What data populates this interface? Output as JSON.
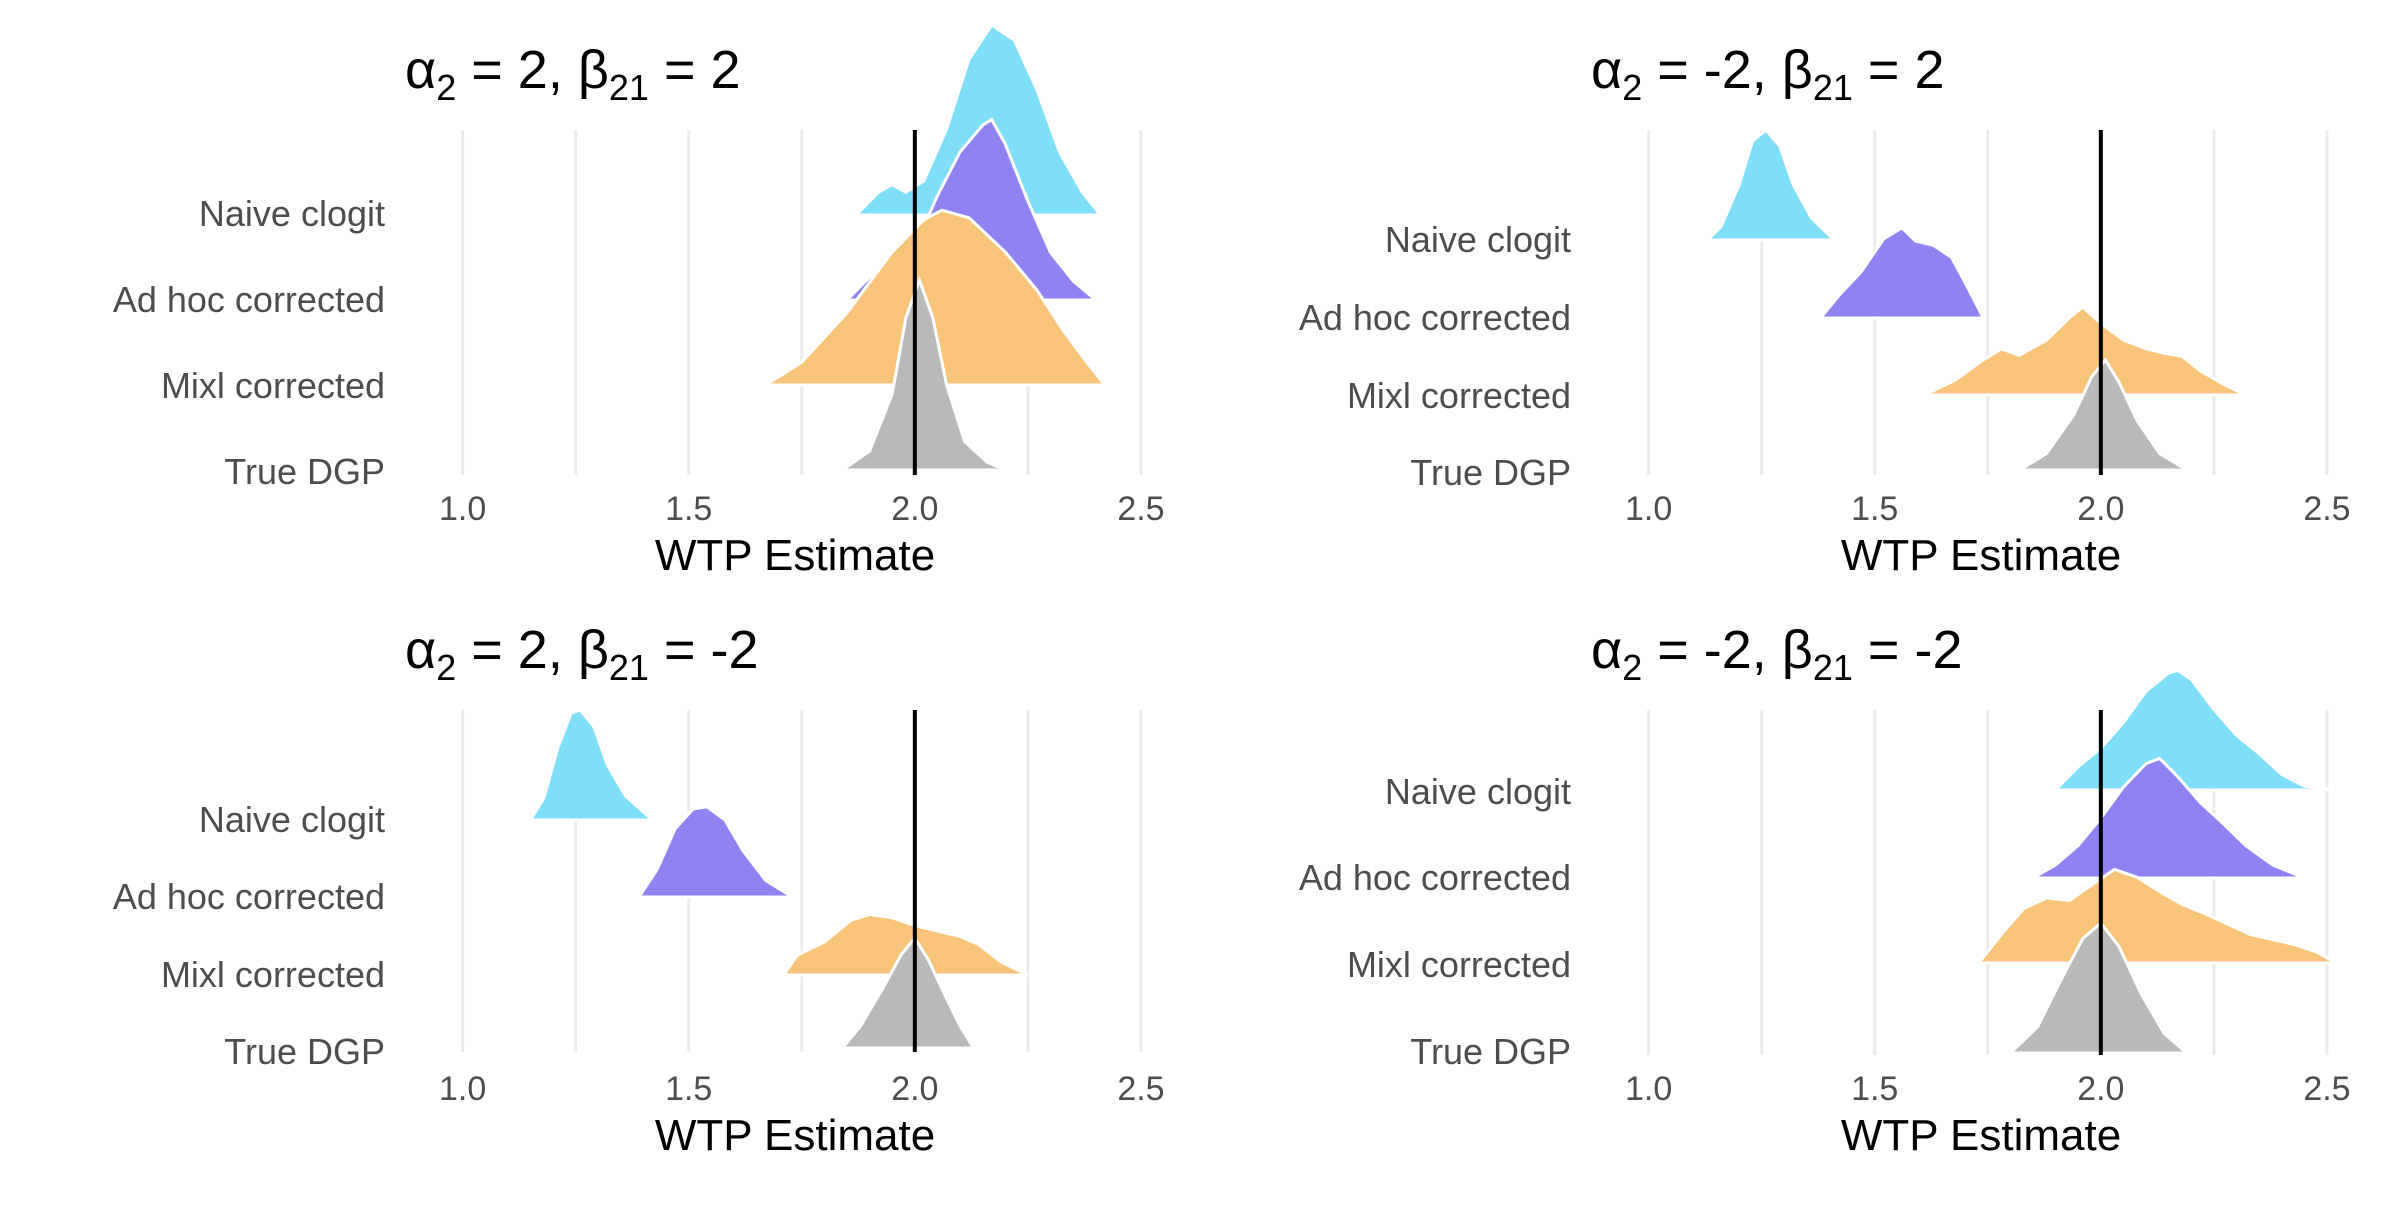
{
  "chart_data": [
    {
      "type": "area",
      "subtype": "ridgeline-density",
      "title": {
        "alpha_value": "2",
        "beta_value": "2"
      },
      "xlabel": "WTP Estimate",
      "xlim": [
        0.95,
        2.52
      ],
      "xticks": [
        "1.0",
        "1.5",
        "2.0",
        "2.5"
      ],
      "xtick_values": [
        1.0,
        1.5,
        2.0,
        2.5
      ],
      "reference_line": 2.0,
      "grid": "vertical",
      "categories": [
        "Naive clogit",
        "Ad hoc corrected",
        "Mixl corrected",
        "True DGP"
      ],
      "series": [
        {
          "label": "Naive clogit",
          "color": "#7fdef8",
          "range": [
            1.87,
            2.41
          ],
          "density": [
            [
              1.87,
              0
            ],
            [
              1.92,
              0.12
            ],
            [
              1.95,
              0.16
            ],
            [
              1.98,
              0.12
            ],
            [
              2.02,
              0.18
            ],
            [
              2.07,
              0.45
            ],
            [
              2.12,
              0.82
            ],
            [
              2.17,
              1.0
            ],
            [
              2.22,
              0.92
            ],
            [
              2.27,
              0.66
            ],
            [
              2.32,
              0.33
            ],
            [
              2.37,
              0.12
            ],
            [
              2.41,
              0
            ]
          ]
        },
        {
          "label": "Ad hoc corrected",
          "color": "#8f83f4",
          "range": [
            1.85,
            2.4
          ],
          "density": [
            [
              1.85,
              0
            ],
            [
              1.9,
              0.12
            ],
            [
              1.95,
              0.16
            ],
            [
              2.0,
              0.28
            ],
            [
              2.05,
              0.55
            ],
            [
              2.1,
              0.78
            ],
            [
              2.15,
              0.92
            ],
            [
              2.17,
              0.95
            ],
            [
              2.2,
              0.82
            ],
            [
              2.25,
              0.52
            ],
            [
              2.3,
              0.25
            ],
            [
              2.35,
              0.1
            ],
            [
              2.4,
              0
            ]
          ]
        },
        {
          "label": "Mixl corrected",
          "color": "#f7c47a",
          "range": [
            1.67,
            2.42
          ],
          "density": [
            [
              1.67,
              0
            ],
            [
              1.75,
              0.12
            ],
            [
              1.85,
              0.38
            ],
            [
              1.95,
              0.7
            ],
            [
              2.02,
              0.87
            ],
            [
              2.06,
              0.92
            ],
            [
              2.12,
              0.88
            ],
            [
              2.2,
              0.7
            ],
            [
              2.27,
              0.5
            ],
            [
              2.33,
              0.28
            ],
            [
              2.38,
              0.12
            ],
            [
              2.42,
              0
            ]
          ]
        },
        {
          "label": "True DGP",
          "color": "#b9b9b9",
          "range": [
            1.84,
            2.2
          ],
          "density": [
            [
              1.84,
              0
            ],
            [
              1.9,
              0.1
            ],
            [
              1.95,
              0.4
            ],
            [
              1.98,
              0.8
            ],
            [
              2.01,
              1.0
            ],
            [
              2.04,
              0.8
            ],
            [
              2.07,
              0.45
            ],
            [
              2.11,
              0.15
            ],
            [
              2.16,
              0.04
            ],
            [
              2.2,
              0
            ]
          ]
        }
      ]
    },
    {
      "type": "area",
      "subtype": "ridgeline-density",
      "title": {
        "alpha_value": "-2",
        "beta_value": "2"
      },
      "xlabel": "WTP Estimate",
      "xlim": [
        0.95,
        2.52
      ],
      "xticks": [
        "1.0",
        "1.5",
        "2.0",
        "2.5"
      ],
      "xtick_values": [
        1.0,
        1.5,
        2.0,
        2.5
      ],
      "reference_line": 2.0,
      "grid": "vertical",
      "categories": [
        "Naive clogit",
        "Ad hoc corrected",
        "Mixl corrected",
        "True DGP"
      ],
      "series": [
        {
          "label": "Naive clogit",
          "color": "#7fdef8",
          "range": [
            1.13,
            1.41
          ],
          "density": [
            [
              1.13,
              0
            ],
            [
              1.16,
              0.12
            ],
            [
              1.2,
              0.5
            ],
            [
              1.23,
              0.9
            ],
            [
              1.26,
              1.0
            ],
            [
              1.29,
              0.85
            ],
            [
              1.32,
              0.5
            ],
            [
              1.36,
              0.2
            ],
            [
              1.41,
              0
            ]
          ]
        },
        {
          "label": "Ad hoc corrected",
          "color": "#8f83f4",
          "range": [
            1.38,
            1.74
          ],
          "density": [
            [
              1.38,
              0
            ],
            [
              1.42,
              0.2
            ],
            [
              1.47,
              0.42
            ],
            [
              1.52,
              0.72
            ],
            [
              1.56,
              0.82
            ],
            [
              1.59,
              0.7
            ],
            [
              1.63,
              0.66
            ],
            [
              1.67,
              0.55
            ],
            [
              1.7,
              0.32
            ],
            [
              1.74,
              0
            ]
          ]
        },
        {
          "label": "Mixl corrected",
          "color": "#f7c47a",
          "range": [
            1.61,
            2.32
          ],
          "density": [
            [
              1.61,
              0
            ],
            [
              1.68,
              0.14
            ],
            [
              1.74,
              0.32
            ],
            [
              1.78,
              0.42
            ],
            [
              1.82,
              0.36
            ],
            [
              1.88,
              0.5
            ],
            [
              1.93,
              0.7
            ],
            [
              1.96,
              0.8
            ],
            [
              2.0,
              0.65
            ],
            [
              2.05,
              0.5
            ],
            [
              2.1,
              0.42
            ],
            [
              2.14,
              0.38
            ],
            [
              2.18,
              0.35
            ],
            [
              2.22,
              0.22
            ],
            [
              2.27,
              0.1
            ],
            [
              2.32,
              0
            ]
          ]
        },
        {
          "label": "True DGP",
          "color": "#b9b9b9",
          "range": [
            1.82,
            2.19
          ],
          "density": [
            [
              1.82,
              0
            ],
            [
              1.88,
              0.15
            ],
            [
              1.94,
              0.5
            ],
            [
              1.98,
              0.85
            ],
            [
              2.01,
              1.0
            ],
            [
              2.04,
              0.8
            ],
            [
              2.08,
              0.45
            ],
            [
              2.13,
              0.15
            ],
            [
              2.19,
              0
            ]
          ]
        }
      ]
    },
    {
      "type": "area",
      "subtype": "ridgeline-density",
      "title": {
        "alpha_value": "2",
        "beta_value": "-2"
      },
      "xlabel": "WTP Estimate",
      "xlim": [
        0.95,
        2.52
      ],
      "xticks": [
        "1.0",
        "1.5",
        "2.0",
        "2.5"
      ],
      "xtick_values": [
        1.0,
        1.5,
        2.0,
        2.5
      ],
      "reference_line": 2.0,
      "grid": "vertical",
      "categories": [
        "Naive clogit",
        "Ad hoc corrected",
        "Mixl corrected",
        "True DGP"
      ],
      "series": [
        {
          "label": "Naive clogit",
          "color": "#7fdef8",
          "range": [
            1.15,
            1.42
          ],
          "density": [
            [
              1.15,
              0
            ],
            [
              1.18,
              0.2
            ],
            [
              1.21,
              0.65
            ],
            [
              1.24,
              0.97
            ],
            [
              1.26,
              1.0
            ],
            [
              1.29,
              0.85
            ],
            [
              1.32,
              0.5
            ],
            [
              1.36,
              0.22
            ],
            [
              1.42,
              0
            ]
          ]
        },
        {
          "label": "Ad hoc corrected",
          "color": "#8f83f4",
          "range": [
            1.39,
            1.73
          ],
          "density": [
            [
              1.39,
              0
            ],
            [
              1.43,
              0.25
            ],
            [
              1.47,
              0.62
            ],
            [
              1.51,
              0.8
            ],
            [
              1.54,
              0.82
            ],
            [
              1.58,
              0.7
            ],
            [
              1.62,
              0.42
            ],
            [
              1.67,
              0.15
            ],
            [
              1.73,
              0
            ]
          ]
        },
        {
          "label": "Mixl corrected",
          "color": "#f7c47a",
          "range": [
            1.71,
            2.25
          ],
          "density": [
            [
              1.71,
              0
            ],
            [
              1.74,
              0.18
            ],
            [
              1.8,
              0.3
            ],
            [
              1.86,
              0.5
            ],
            [
              1.9,
              0.55
            ],
            [
              1.95,
              0.52
            ],
            [
              2.0,
              0.45
            ],
            [
              2.05,
              0.4
            ],
            [
              2.1,
              0.35
            ],
            [
              2.14,
              0.28
            ],
            [
              2.19,
              0.12
            ],
            [
              2.25,
              0
            ]
          ]
        },
        {
          "label": "True DGP",
          "color": "#b9b9b9",
          "range": [
            1.84,
            2.13
          ],
          "density": [
            [
              1.84,
              0
            ],
            [
              1.88,
              0.2
            ],
            [
              1.93,
              0.55
            ],
            [
              1.97,
              0.85
            ],
            [
              2.0,
              1.0
            ],
            [
              2.03,
              0.8
            ],
            [
              2.07,
              0.45
            ],
            [
              2.1,
              0.2
            ],
            [
              2.13,
              0
            ]
          ]
        }
      ]
    },
    {
      "type": "area",
      "subtype": "ridgeline-density",
      "title": {
        "alpha_value": "-2",
        "beta_value": "-2"
      },
      "xlabel": "WTP Estimate",
      "xlim": [
        0.95,
        2.52
      ],
      "xticks": [
        "1.0",
        "1.5",
        "2.0",
        "2.5"
      ],
      "xtick_values": [
        1.0,
        1.5,
        2.0,
        2.5
      ],
      "reference_line": 2.0,
      "grid": "vertical",
      "categories": [
        "Naive clogit",
        "Ad hoc corrected",
        "Mixl corrected",
        "True DGP"
      ],
      "series": [
        {
          "label": "Naive clogit",
          "color": "#7fdef8",
          "range": [
            1.9,
            2.52
          ],
          "density": [
            [
              1.9,
              0
            ],
            [
              1.95,
              0.18
            ],
            [
              2.0,
              0.32
            ],
            [
              2.05,
              0.52
            ],
            [
              2.1,
              0.76
            ],
            [
              2.15,
              0.9
            ],
            [
              2.17,
              0.92
            ],
            [
              2.2,
              0.85
            ],
            [
              2.25,
              0.62
            ],
            [
              2.3,
              0.42
            ],
            [
              2.35,
              0.28
            ],
            [
              2.4,
              0.12
            ],
            [
              2.45,
              0.03
            ],
            [
              2.52,
              0
            ]
          ]
        },
        {
          "label": "Ad hoc corrected",
          "color": "#8f83f4",
          "range": [
            1.85,
            2.45
          ],
          "density": [
            [
              1.85,
              0
            ],
            [
              1.9,
              0.1
            ],
            [
              1.95,
              0.25
            ],
            [
              2.0,
              0.46
            ],
            [
              2.05,
              0.7
            ],
            [
              2.1,
              0.88
            ],
            [
              2.13,
              0.92
            ],
            [
              2.17,
              0.78
            ],
            [
              2.22,
              0.58
            ],
            [
              2.27,
              0.42
            ],
            [
              2.32,
              0.25
            ],
            [
              2.38,
              0.1
            ],
            [
              2.45,
              0
            ]
          ]
        },
        {
          "label": "Mixl corrected",
          "color": "#f7c47a",
          "range": [
            1.73,
            2.52
          ],
          "density": [
            [
              1.73,
              0
            ],
            [
              1.78,
              0.22
            ],
            [
              1.83,
              0.42
            ],
            [
              1.88,
              0.5
            ],
            [
              1.93,
              0.48
            ],
            [
              1.98,
              0.6
            ],
            [
              2.03,
              0.72
            ],
            [
              2.08,
              0.66
            ],
            [
              2.13,
              0.55
            ],
            [
              2.18,
              0.45
            ],
            [
              2.23,
              0.38
            ],
            [
              2.28,
              0.3
            ],
            [
              2.33,
              0.22
            ],
            [
              2.38,
              0.18
            ],
            [
              2.43,
              0.14
            ],
            [
              2.48,
              0.08
            ],
            [
              2.52,
              0
            ]
          ]
        },
        {
          "label": "True DGP",
          "color": "#b9b9b9",
          "range": [
            1.8,
            2.19
          ],
          "density": [
            [
              1.8,
              0
            ],
            [
              1.86,
              0.2
            ],
            [
              1.91,
              0.55
            ],
            [
              1.96,
              0.88
            ],
            [
              2.0,
              1.0
            ],
            [
              2.04,
              0.82
            ],
            [
              2.09,
              0.45
            ],
            [
              2.14,
              0.15
            ],
            [
              2.19,
              0
            ]
          ]
        }
      ]
    }
  ]
}
